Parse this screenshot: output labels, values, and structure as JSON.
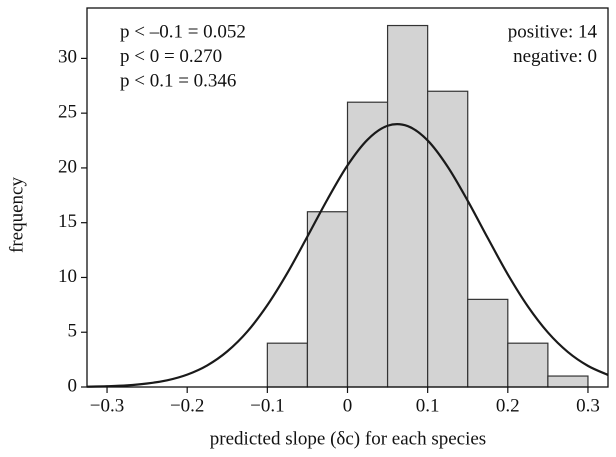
{
  "chart_data": {
    "type": "histogram",
    "xlabel": "predicted slope (δc) for each species",
    "ylabel": "frequency",
    "bins": [
      -0.1,
      -0.05,
      0,
      0.05,
      0.1,
      0.15,
      0.2,
      0.25,
      0.3
    ],
    "counts": [
      4,
      16,
      26,
      33,
      27,
      8,
      4,
      1
    ],
    "color": "#d3d3d3",
    "curve": {
      "color": "#1a1a1a",
      "x": [
        -0.325,
        -0.3,
        -0.275,
        -0.25,
        -0.225,
        -0.2,
        -0.175,
        -0.15,
        -0.125,
        -0.1,
        -0.075,
        -0.05,
        -0.025,
        0,
        0.025,
        0.05,
        0.075,
        0.1,
        0.125,
        0.15,
        0.175,
        0.2,
        0.225,
        0.25,
        0.275,
        0.3,
        0.325
      ],
      "values": [
        0.03,
        0.07,
        0.15,
        0.32,
        0.61,
        1.13,
        1.97,
        3.25,
        5.06,
        7.47,
        10.41,
        13.74,
        17.13,
        20.23,
        22.58,
        23.85,
        23.82,
        22.51,
        20.11,
        17.0,
        13.6,
        10.28,
        7.36,
        4.98,
        3.19,
        1.93,
        1.1
      ]
    },
    "xlim": [
      -0.325,
      0.325
    ],
    "ylim": [
      0,
      34.6
    ],
    "xticks": [
      {
        "value": -0.3,
        "label": "−0.3"
      },
      {
        "value": -0.2,
        "label": "−0.2"
      },
      {
        "value": -0.1,
        "label": "−0.1"
      },
      0,
      0.1,
      0.2,
      0.3
    ],
    "yticks": [
      0,
      5,
      10,
      15,
      20,
      25,
      30
    ],
    "annotations_left": [
      "p < –0.1 = 0.052",
      "p < 0 = 0.270",
      "p < 0.1 = 0.346"
    ],
    "annotations_right": [
      "positive: 14",
      "negative: 0"
    ]
  }
}
